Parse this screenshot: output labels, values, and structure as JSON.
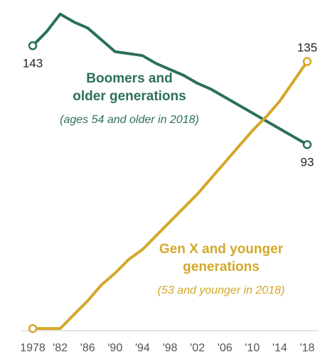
{
  "chart_data": {
    "type": "line",
    "x": [
      1978,
      1980,
      1982,
      1984,
      1986,
      1988,
      1990,
      1992,
      1994,
      1996,
      1998,
      2000,
      2002,
      2004,
      2006,
      2008,
      2010,
      2012,
      2014,
      2016,
      2018
    ],
    "x_tick_labels": [
      "1978",
      "'82",
      "'86",
      "'90",
      "'94",
      "'98",
      "'02",
      "'06",
      "'10",
      "'14",
      "'18"
    ],
    "x_ticks": [
      1978,
      1982,
      1986,
      1990,
      1994,
      1998,
      2002,
      2006,
      2010,
      2014,
      2018
    ],
    "ylim": [
      0,
      160
    ],
    "series": [
      {
        "name": "Boomers and older generations",
        "line1": "Boomers and",
        "line2": "older generations",
        "note": "(ages 54 and older in 2018)",
        "color": "#2b6f5e",
        "values": [
          143,
          150,
          159,
          155,
          152,
          146,
          140,
          139,
          138,
          134,
          131,
          128,
          124,
          121,
          117,
          113,
          109,
          105,
          101,
          97,
          93
        ],
        "start_label": "143",
        "end_label": "93"
      },
      {
        "name": "Gen X and younger generations",
        "line1": "Gen X and younger",
        "line2": "generations",
        "note": "(53 and younger in 2018)",
        "color": "#d4a82b",
        "values": [
          0,
          0,
          0,
          7,
          14,
          22,
          28,
          35,
          40,
          47,
          54,
          61,
          68,
          76,
          84,
          92,
          100,
          107,
          115,
          125,
          135
        ],
        "end_label": "135"
      }
    ]
  }
}
